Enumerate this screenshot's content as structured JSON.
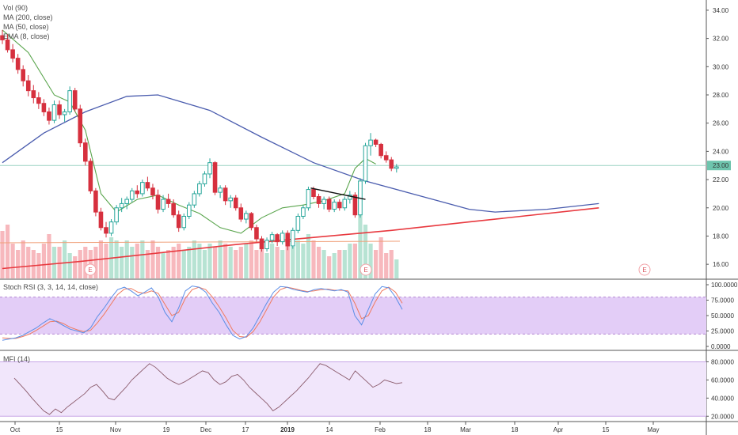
{
  "legend": {
    "main": [
      "Vol (90)",
      "MA (200, close)",
      "MA (50, close)",
      "EMA (8, close)"
    ],
    "stoch": "Stoch RSI (3, 3, 14, 14, close)",
    "mfi": "MFI (14)"
  },
  "price_axis": {
    "ticks": [
      "34.00",
      "32.00",
      "30.00",
      "28.00",
      "26.00",
      "24.00",
      "22.00",
      "20.00",
      "18.00",
      "16.00"
    ],
    "last_price": "23.00"
  },
  "stoch_axis": {
    "ticks": [
      "100.0000",
      "75.0000",
      "50.0000",
      "25.0000",
      "0.0000"
    ]
  },
  "mfi_axis": {
    "ticks": [
      "80.0000",
      "60.0000",
      "40.0000",
      "20.0000"
    ]
  },
  "x_axis": {
    "ticks": [
      "Oct",
      "15",
      "Nov",
      "19",
      "Dec",
      "17",
      "2019",
      "14",
      "Feb",
      "18",
      "Mar",
      "18",
      "Apr",
      "15",
      "May"
    ]
  },
  "earnings_marker": "E",
  "colors": {
    "up": "#26a69a",
    "down": "#d6303e",
    "ma50": "#4a5cae",
    "ma200": "#e8393f",
    "ema8": "#5aa54d",
    "stoch_band": "#e3cdf7",
    "mfi_band": "#f1e6fb"
  },
  "chart_data": {
    "type": "candlestick",
    "price_range": [
      15.0,
      34.5
    ],
    "horizontal_line": 23.0,
    "candles_ohlc": [
      [
        32.2,
        32.6,
        31.6,
        31.9
      ],
      [
        31.9,
        32.3,
        31.0,
        31.2
      ],
      [
        31.2,
        31.6,
        30.3,
        30.6
      ],
      [
        30.6,
        30.9,
        29.5,
        29.8
      ],
      [
        29.8,
        30.1,
        28.6,
        29.0
      ],
      [
        29.0,
        29.4,
        27.9,
        28.3
      ],
      [
        28.3,
        28.7,
        27.4,
        27.8
      ],
      [
        27.8,
        28.2,
        27.0,
        27.4
      ],
      [
        27.4,
        27.7,
        26.5,
        26.8
      ],
      [
        26.8,
        27.1,
        25.9,
        26.2
      ],
      [
        26.2,
        27.6,
        26.0,
        27.3
      ],
      [
        27.3,
        27.6,
        26.3,
        26.6
      ],
      [
        26.6,
        27.0,
        26.1,
        26.8
      ],
      [
        26.8,
        28.6,
        26.6,
        28.3
      ],
      [
        28.3,
        28.5,
        26.8,
        27.0
      ],
      [
        27.0,
        27.3,
        24.3,
        24.6
      ],
      [
        24.6,
        24.9,
        23.0,
        23.3
      ],
      [
        23.3,
        23.5,
        21.0,
        21.2
      ],
      [
        21.2,
        21.4,
        19.4,
        19.7
      ],
      [
        19.7,
        20.0,
        18.4,
        18.6
      ],
      [
        18.6,
        19.0,
        17.9,
        18.2
      ],
      [
        18.2,
        19.2,
        18.0,
        19.0
      ],
      [
        19.0,
        20.2,
        18.8,
        20.0
      ],
      [
        20.0,
        20.7,
        19.7,
        20.3
      ],
      [
        20.3,
        20.8,
        19.9,
        20.6
      ],
      [
        20.6,
        21.4,
        20.4,
        21.2
      ],
      [
        21.2,
        21.6,
        20.7,
        21.0
      ],
      [
        21.0,
        22.0,
        20.8,
        21.8
      ],
      [
        21.8,
        22.2,
        21.2,
        21.4
      ],
      [
        21.4,
        21.7,
        20.6,
        20.9
      ],
      [
        20.9,
        21.3,
        19.6,
        19.9
      ],
      [
        19.9,
        20.9,
        19.7,
        20.6
      ],
      [
        20.6,
        21.0,
        20.0,
        20.3
      ],
      [
        20.3,
        20.6,
        19.3,
        19.5
      ],
      [
        19.5,
        19.8,
        18.3,
        18.6
      ],
      [
        18.6,
        19.6,
        18.4,
        19.4
      ],
      [
        19.4,
        20.4,
        19.2,
        20.2
      ],
      [
        20.2,
        21.2,
        20.0,
        21.0
      ],
      [
        21.0,
        21.9,
        20.8,
        21.7
      ],
      [
        21.7,
        22.6,
        21.5,
        22.4
      ],
      [
        22.4,
        23.5,
        22.1,
        23.2
      ],
      [
        23.2,
        23.3,
        20.9,
        21.1
      ],
      [
        21.1,
        21.6,
        20.7,
        21.4
      ],
      [
        21.4,
        21.6,
        20.2,
        20.5
      ],
      [
        20.5,
        20.9,
        20.0,
        20.7
      ],
      [
        20.7,
        20.9,
        19.8,
        20.0
      ],
      [
        20.0,
        20.3,
        19.0,
        19.2
      ],
      [
        19.2,
        19.8,
        18.9,
        19.6
      ],
      [
        19.6,
        19.7,
        18.4,
        18.6
      ],
      [
        18.6,
        18.8,
        17.6,
        17.8
      ],
      [
        17.8,
        18.0,
        16.9,
        17.1
      ],
      [
        17.1,
        17.9,
        16.9,
        17.7
      ],
      [
        17.7,
        18.3,
        17.5,
        18.1
      ],
      [
        18.1,
        18.2,
        17.3,
        17.6
      ],
      [
        17.6,
        18.4,
        17.4,
        18.2
      ],
      [
        18.2,
        18.4,
        17.0,
        17.3
      ],
      [
        17.3,
        18.6,
        17.1,
        18.4
      ],
      [
        18.4,
        19.6,
        18.2,
        19.4
      ],
      [
        19.4,
        20.2,
        19.2,
        20.0
      ],
      [
        20.0,
        21.5,
        19.8,
        21.3
      ],
      [
        21.3,
        21.5,
        20.6,
        20.8
      ],
      [
        20.8,
        21.0,
        20.0,
        20.3
      ],
      [
        20.3,
        20.8,
        19.9,
        20.6
      ],
      [
        20.6,
        20.8,
        19.7,
        19.9
      ],
      [
        19.9,
        20.6,
        19.7,
        20.4
      ],
      [
        20.4,
        20.6,
        19.8,
        20.0
      ],
      [
        20.0,
        20.8,
        19.8,
        20.6
      ],
      [
        20.6,
        21.2,
        20.3,
        20.9
      ],
      [
        20.9,
        21.1,
        19.3,
        19.5
      ],
      [
        19.5,
        22.1,
        19.3,
        21.9
      ],
      [
        21.9,
        24.6,
        21.7,
        24.4
      ],
      [
        24.4,
        25.3,
        23.7,
        24.8
      ],
      [
        24.8,
        24.9,
        24.3,
        24.5
      ],
      [
        24.5,
        24.6,
        23.5,
        23.7
      ],
      [
        23.7,
        24.0,
        23.2,
        23.4
      ],
      [
        23.4,
        23.6,
        22.6,
        22.8
      ],
      [
        22.8,
        23.1,
        22.5,
        22.9
      ]
    ],
    "ma50": [
      [
        0,
        23.2
      ],
      [
        8,
        25.3
      ],
      [
        16,
        26.8
      ],
      [
        24,
        27.9
      ],
      [
        30,
        28.0
      ],
      [
        40,
        26.9
      ],
      [
        50,
        25.0
      ],
      [
        60,
        23.2
      ],
      [
        70,
        21.9
      ],
      [
        80,
        20.9
      ],
      [
        90,
        19.9
      ],
      [
        95,
        19.7
      ],
      [
        105,
        19.9
      ],
      [
        115,
        20.3
      ]
    ],
    "ma200": [
      [
        0,
        15.7
      ],
      [
        15,
        16.2
      ],
      [
        30,
        16.8
      ],
      [
        45,
        17.4
      ],
      [
        60,
        17.9
      ],
      [
        75,
        18.4
      ],
      [
        90,
        19.0
      ],
      [
        100,
        19.4
      ],
      [
        115,
        20.0
      ]
    ],
    "ema8": [
      [
        0,
        32.6
      ],
      [
        5,
        31.0
      ],
      [
        10,
        28.0
      ],
      [
        13,
        27.5
      ],
      [
        16,
        25.5
      ],
      [
        19,
        21.0
      ],
      [
        22,
        19.7
      ],
      [
        26,
        20.6
      ],
      [
        30,
        20.9
      ],
      [
        34,
        20.2
      ],
      [
        38,
        19.6
      ],
      [
        42,
        18.6
      ],
      [
        46,
        18.2
      ],
      [
        50,
        19.3
      ],
      [
        54,
        20.0
      ],
      [
        58,
        20.2
      ],
      [
        62,
        20.5
      ],
      [
        66,
        21.0
      ],
      [
        68,
        22.8
      ],
      [
        70,
        23.5
      ],
      [
        72,
        23.1
      ]
    ],
    "volume_relative": [
      0.75,
      0.85,
      0.55,
      0.45,
      0.6,
      0.5,
      0.45,
      0.4,
      0.55,
      0.7,
      0.5,
      0.5,
      0.6,
      0.4,
      0.35,
      0.45,
      0.5,
      0.45,
      0.5,
      0.6,
      0.55,
      0.65,
      0.6,
      0.5,
      0.6,
      0.5,
      0.55,
      0.6,
      0.45,
      0.6,
      0.5,
      0.4,
      0.45,
      0.5,
      0.55,
      0.45,
      0.5,
      0.6,
      0.55,
      0.45,
      0.55,
      0.5,
      0.6,
      0.55,
      0.5,
      0.45,
      0.5,
      0.55,
      0.6,
      0.45,
      0.5,
      0.4,
      0.55,
      0.5,
      0.45,
      0.6,
      0.5,
      0.6,
      0.55,
      0.7,
      0.6,
      0.5,
      0.45,
      0.35,
      0.4,
      0.45,
      0.45,
      0.55,
      0.55,
      1.0,
      0.85,
      0.55,
      0.45,
      0.65,
      0.4,
      0.45,
      0.3
    ],
    "stoch_k": [
      10,
      12,
      14,
      18,
      24,
      30,
      38,
      45,
      40,
      34,
      28,
      25,
      22,
      30,
      48,
      62,
      78,
      92,
      96,
      90,
      82,
      88,
      95,
      80,
      55,
      40,
      62,
      90,
      98,
      96,
      88,
      70,
      55,
      35,
      18,
      12,
      16,
      30,
      50,
      70,
      88,
      97,
      96,
      92,
      90,
      88,
      92,
      94,
      92,
      90,
      92,
      88,
      50,
      35,
      60,
      85,
      97,
      95,
      80,
      60
    ],
    "stoch_d": [
      14,
      13,
      13,
      16,
      20,
      26,
      33,
      40,
      41,
      37,
      31,
      27,
      24,
      26,
      38,
      52,
      68,
      84,
      93,
      94,
      88,
      86,
      90,
      86,
      68,
      50,
      55,
      78,
      92,
      96,
      92,
      80,
      64,
      46,
      26,
      16,
      15,
      24,
      40,
      60,
      80,
      92,
      96,
      94,
      91,
      89,
      90,
      92,
      93,
      91,
      91,
      90,
      70,
      45,
      50,
      72,
      90,
      96,
      88,
      70
    ]
  },
  "mfi_data": [
    62,
    55,
    48,
    40,
    33,
    26,
    22,
    28,
    24,
    30,
    35,
    40,
    45,
    52,
    55,
    48,
    40,
    38,
    45,
    52,
    60,
    66,
    72,
    78,
    74,
    68,
    62,
    58,
    55,
    58,
    62,
    66,
    70,
    68,
    60,
    55,
    58,
    64,
    66,
    60,
    52,
    46,
    40,
    34,
    26,
    30,
    36,
    42,
    48,
    55,
    62,
    70,
    78,
    76,
    72,
    68,
    64,
    60,
    70,
    64,
    58,
    52,
    55,
    60,
    58,
    56,
    57
  ]
}
